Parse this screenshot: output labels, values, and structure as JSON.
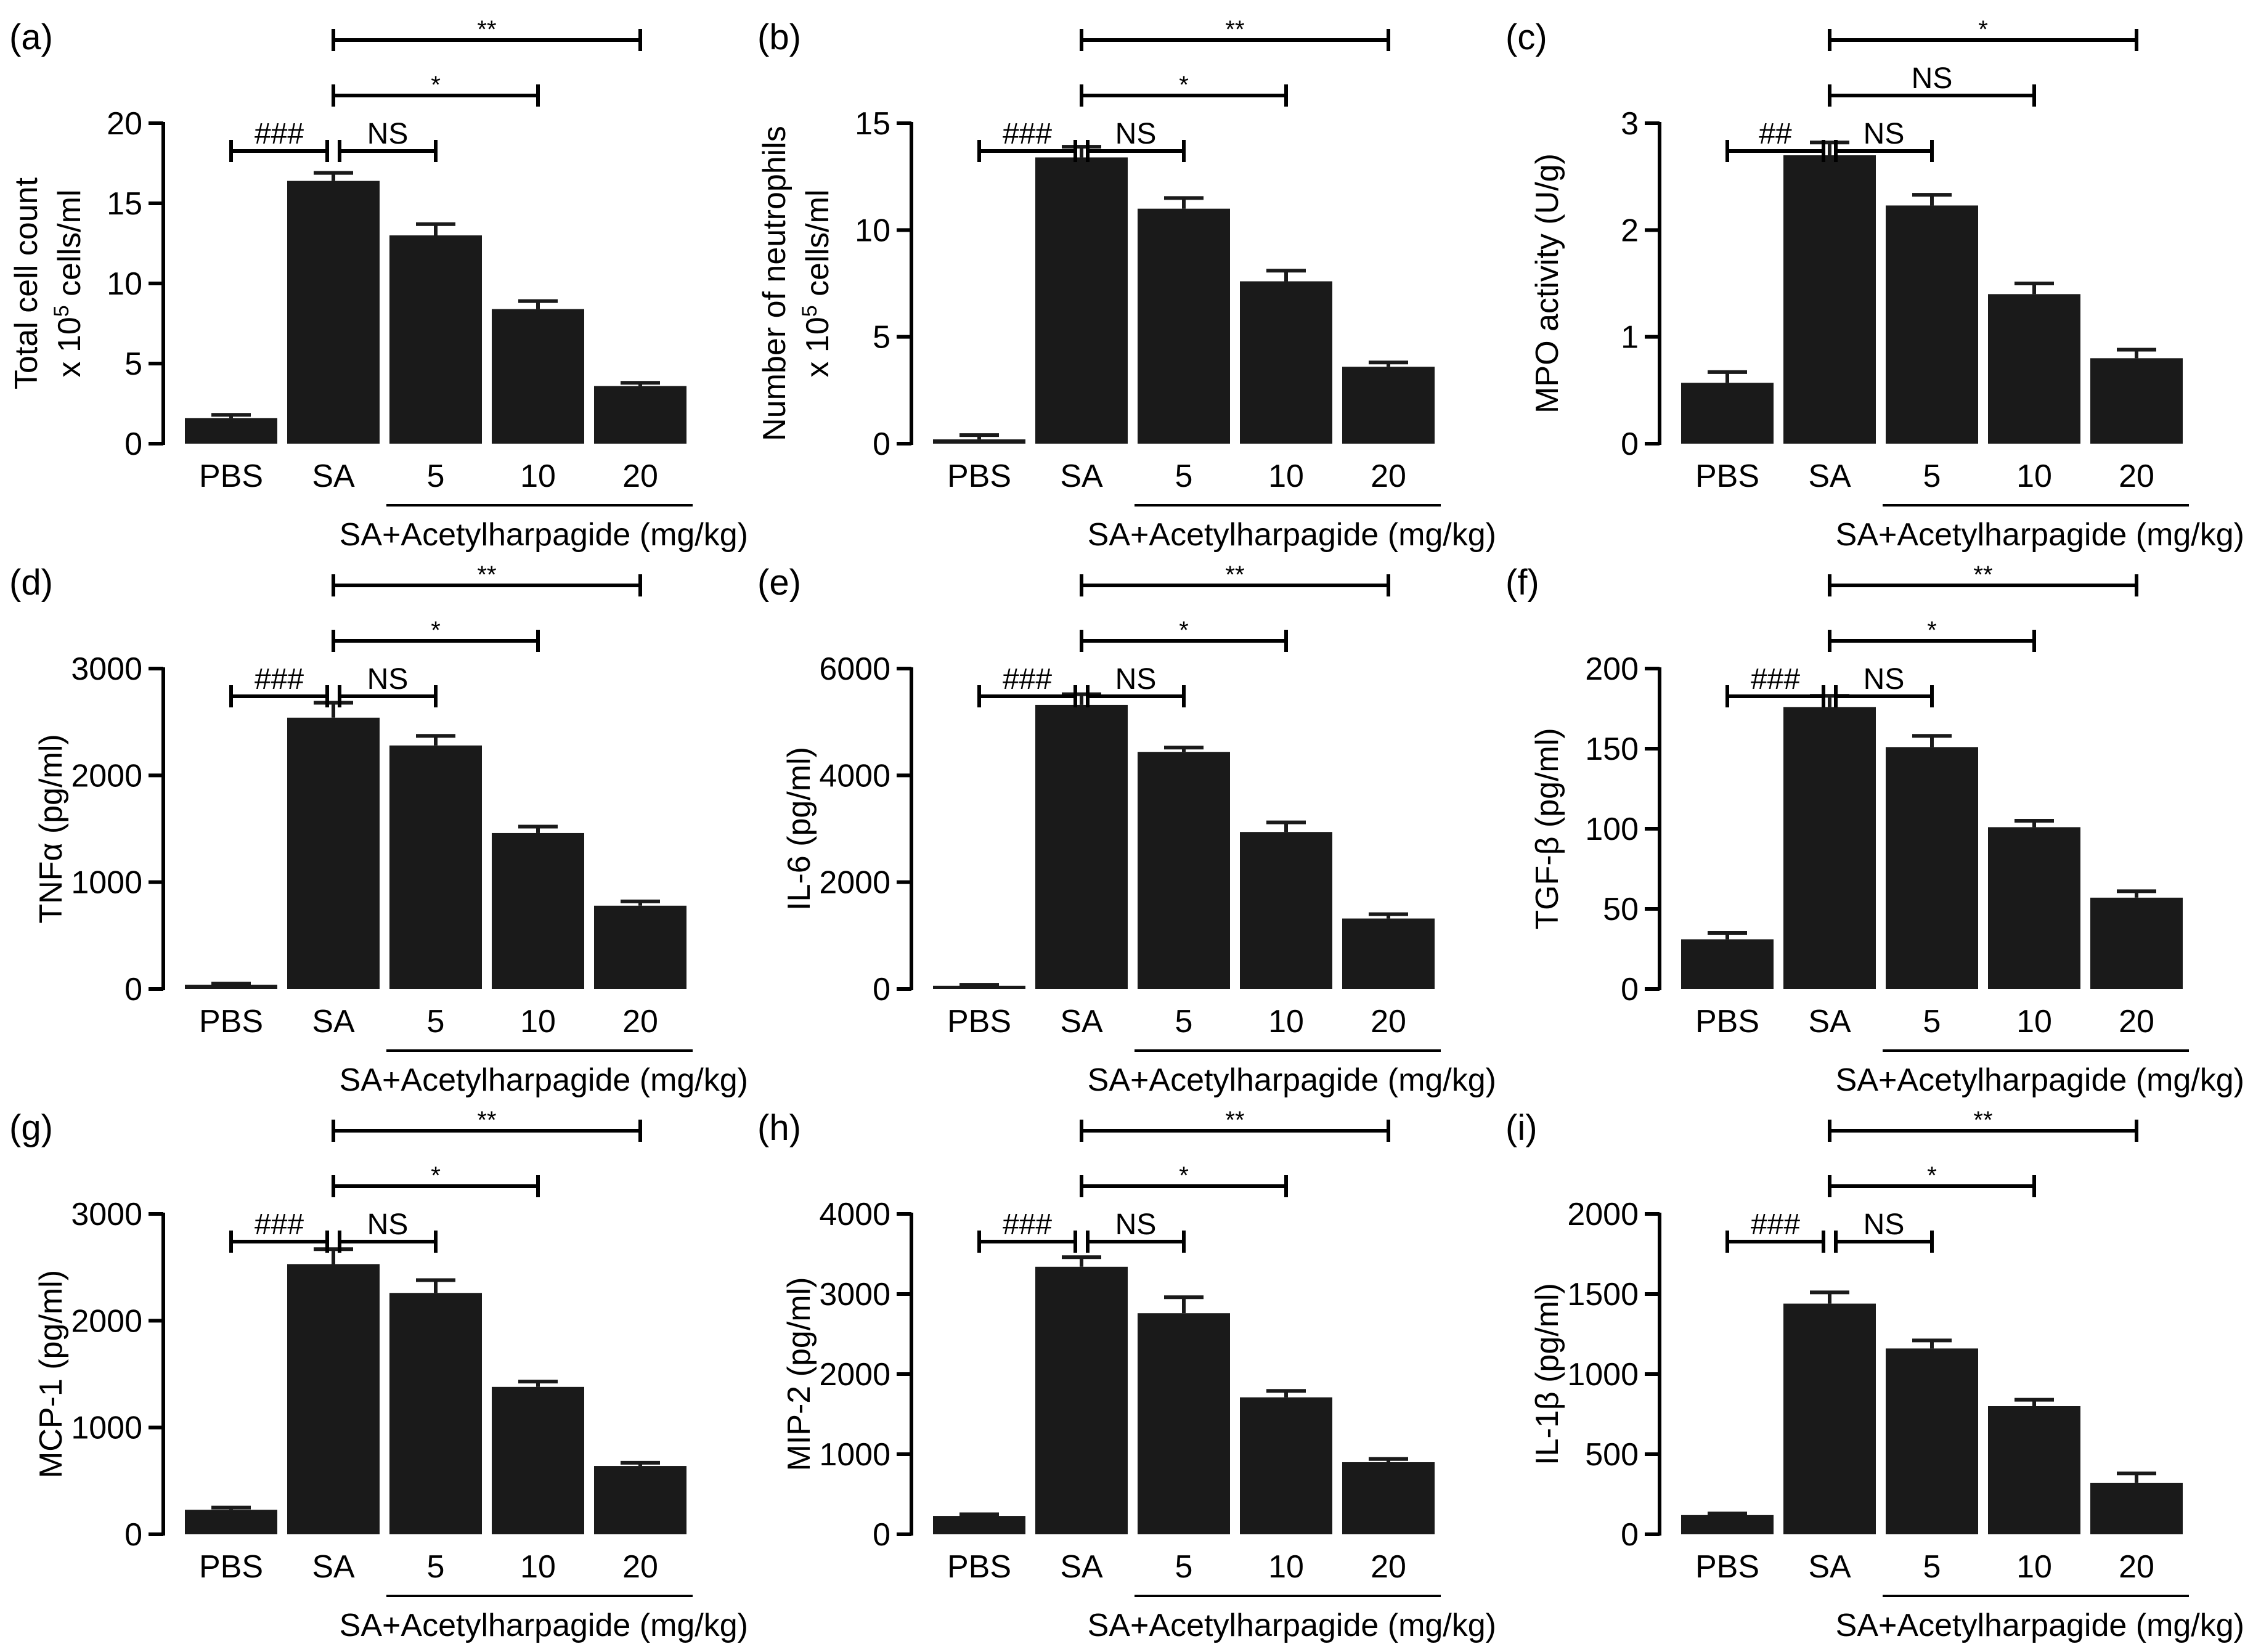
{
  "figure": {
    "categories": [
      "PBS",
      "SA",
      "5",
      "10",
      "20"
    ],
    "group_label": "SA+Acetylharpagide (mg/kg)"
  },
  "chart_data": [
    {
      "type": "bar",
      "panel": "(a)",
      "ylabel_lines": [
        "Total cell count",
        "x 10",
        "5",
        " cells/ml"
      ],
      "categories": [
        "PBS",
        "SA",
        "5",
        "10",
        "20"
      ],
      "values": [
        1.6,
        16.4,
        13.0,
        8.4,
        3.6
      ],
      "errors": [
        0.2,
        0.5,
        0.7,
        0.5,
        0.2
      ],
      "ylim": [
        0,
        20
      ],
      "yticks": [
        0,
        5,
        10,
        15,
        20
      ],
      "annotations": [
        {
          "label": "###",
          "from": 0,
          "to": 1,
          "level": 0
        },
        {
          "label": "NS",
          "from": 1,
          "to": 2,
          "level": 0
        },
        {
          "label": "*",
          "from": 1,
          "to": 3,
          "level": 1
        },
        {
          "label": "**",
          "from": 1,
          "to": 4,
          "level": 2
        }
      ],
      "xlabel": "SA+Acetylharpagide (mg/kg)"
    },
    {
      "type": "bar",
      "panel": "(b)",
      "ylabel_lines": [
        "Number of neutrophils",
        "x 10",
        "5",
        " cells/ml"
      ],
      "categories": [
        "PBS",
        "SA",
        "5",
        "10",
        "20"
      ],
      "values": [
        0.2,
        13.4,
        11.0,
        7.6,
        3.6
      ],
      "errors": [
        0.2,
        0.5,
        0.5,
        0.5,
        0.2
      ],
      "ylim": [
        0,
        15
      ],
      "yticks": [
        0,
        5,
        10,
        15
      ],
      "annotations": [
        {
          "label": "###",
          "from": 0,
          "to": 1,
          "level": 0
        },
        {
          "label": "NS",
          "from": 1,
          "to": 2,
          "level": 0
        },
        {
          "label": "*",
          "from": 1,
          "to": 3,
          "level": 1
        },
        {
          "label": "**",
          "from": 1,
          "to": 4,
          "level": 2
        }
      ],
      "xlabel": "SA+Acetylharpagide (mg/kg)"
    },
    {
      "type": "bar",
      "panel": "(c)",
      "ylabel_lines": [
        "MPO activity (U/g)"
      ],
      "categories": [
        "PBS",
        "SA",
        "5",
        "10",
        "20"
      ],
      "values": [
        0.57,
        2.7,
        2.23,
        1.4,
        0.8
      ],
      "errors": [
        0.1,
        0.12,
        0.1,
        0.1,
        0.08
      ],
      "ylim": [
        0,
        3
      ],
      "yticks": [
        0,
        1,
        2,
        3
      ],
      "annotations": [
        {
          "label": "##",
          "from": 0,
          "to": 1,
          "level": 0
        },
        {
          "label": "NS",
          "from": 1,
          "to": 2,
          "level": 0
        },
        {
          "label": "NS",
          "from": 1,
          "to": 3,
          "level": 1
        },
        {
          "label": "*",
          "from": 1,
          "to": 4,
          "level": 2
        }
      ],
      "xlabel": "SA+Acetylharpagide (mg/kg)"
    },
    {
      "type": "bar",
      "panel": "(d)",
      "ylabel_lines": [
        "TNFα (pg/ml)"
      ],
      "categories": [
        "PBS",
        "SA",
        "5",
        "10",
        "20"
      ],
      "values": [
        40,
        2540,
        2280,
        1460,
        780
      ],
      "errors": [
        10,
        140,
        90,
        60,
        40
      ],
      "ylim": [
        0,
        3000
      ],
      "yticks": [
        0,
        1000,
        2000,
        3000
      ],
      "annotations": [
        {
          "label": "###",
          "from": 0,
          "to": 1,
          "level": 0
        },
        {
          "label": "NS",
          "from": 1,
          "to": 2,
          "level": 0
        },
        {
          "label": "*",
          "from": 1,
          "to": 3,
          "level": 1
        },
        {
          "label": "**",
          "from": 1,
          "to": 4,
          "level": 2
        }
      ],
      "xlabel": "SA+Acetylharpagide (mg/kg)"
    },
    {
      "type": "bar",
      "panel": "(e)",
      "ylabel_lines": [
        "IL-6 (pg/ml)"
      ],
      "categories": [
        "PBS",
        "SA",
        "5",
        "10",
        "20"
      ],
      "values": [
        60,
        5320,
        4440,
        2940,
        1320
      ],
      "errors": [
        20,
        200,
        80,
        180,
        80
      ],
      "ylim": [
        0,
        6000
      ],
      "yticks": [
        0,
        2000,
        4000,
        6000
      ],
      "annotations": [
        {
          "label": "###",
          "from": 0,
          "to": 1,
          "level": 0
        },
        {
          "label": "NS",
          "from": 1,
          "to": 2,
          "level": 0
        },
        {
          "label": "*",
          "from": 1,
          "to": 3,
          "level": 1
        },
        {
          "label": "**",
          "from": 1,
          "to": 4,
          "level": 2
        }
      ],
      "xlabel": "SA+Acetylharpagide (mg/kg)"
    },
    {
      "type": "bar",
      "panel": "(f)",
      "ylabel_lines": [
        "TGF-β (pg/ml)"
      ],
      "categories": [
        "PBS",
        "SA",
        "5",
        "10",
        "20"
      ],
      "values": [
        31,
        176,
        151,
        101,
        57
      ],
      "errors": [
        4,
        7,
        7,
        4,
        4
      ],
      "ylim": [
        0,
        200
      ],
      "yticks": [
        0,
        50,
        100,
        150,
        200
      ],
      "annotations": [
        {
          "label": "###",
          "from": 0,
          "to": 1,
          "level": 0
        },
        {
          "label": "NS",
          "from": 1,
          "to": 2,
          "level": 0
        },
        {
          "label": "*",
          "from": 1,
          "to": 3,
          "level": 1
        },
        {
          "label": "**",
          "from": 1,
          "to": 4,
          "level": 2
        }
      ],
      "xlabel": "SA+Acetylharpagide (mg/kg)"
    },
    {
      "type": "bar",
      "panel": "(g)",
      "ylabel_lines": [
        "MCP-1 (pg/ml)"
      ],
      "categories": [
        "PBS",
        "SA",
        "5",
        "10",
        "20"
      ],
      "values": [
        230,
        2530,
        2260,
        1380,
        640
      ],
      "errors": [
        20,
        140,
        120,
        50,
        30
      ],
      "ylim": [
        0,
        3000
      ],
      "yticks": [
        0,
        1000,
        2000,
        3000
      ],
      "annotations": [
        {
          "label": "###",
          "from": 0,
          "to": 1,
          "level": 0
        },
        {
          "label": "NS",
          "from": 1,
          "to": 2,
          "level": 0
        },
        {
          "label": "*",
          "from": 1,
          "to": 3,
          "level": 1
        },
        {
          "label": "**",
          "from": 1,
          "to": 4,
          "level": 2
        }
      ],
      "xlabel": "SA+Acetylharpagide (mg/kg)"
    },
    {
      "type": "bar",
      "panel": "(h)",
      "ylabel_lines": [
        "MIP-2 (pg/ml)"
      ],
      "categories": [
        "PBS",
        "SA",
        "5",
        "10",
        "20"
      ],
      "values": [
        230,
        3340,
        2760,
        1710,
        900
      ],
      "errors": [
        20,
        120,
        200,
        80,
        40
      ],
      "ylim": [
        0,
        4000
      ],
      "yticks": [
        0,
        1000,
        2000,
        3000,
        4000
      ],
      "annotations": [
        {
          "label": "###",
          "from": 0,
          "to": 1,
          "level": 0
        },
        {
          "label": "NS",
          "from": 1,
          "to": 2,
          "level": 0
        },
        {
          "label": "*",
          "from": 1,
          "to": 3,
          "level": 1
        },
        {
          "label": "**",
          "from": 1,
          "to": 4,
          "level": 2
        }
      ],
      "xlabel": "SA+Acetylharpagide (mg/kg)"
    },
    {
      "type": "bar",
      "panel": "(i)",
      "ylabel_lines": [
        "IL-1β (pg/ml)"
      ],
      "categories": [
        "PBS",
        "SA",
        "5",
        "10",
        "20"
      ],
      "values": [
        120,
        1440,
        1160,
        800,
        320
      ],
      "errors": [
        10,
        70,
        50,
        40,
        60
      ],
      "ylim": [
        0,
        2000
      ],
      "yticks": [
        0,
        500,
        1000,
        1500,
        2000
      ],
      "annotations": [
        {
          "label": "###",
          "from": 0,
          "to": 1,
          "level": 0
        },
        {
          "label": "NS",
          "from": 1,
          "to": 2,
          "level": 0
        },
        {
          "label": "*",
          "from": 1,
          "to": 3,
          "level": 1
        },
        {
          "label": "**",
          "from": 1,
          "to": 4,
          "level": 2
        }
      ],
      "xlabel": "SA+Acetylharpagide (mg/kg)"
    }
  ]
}
